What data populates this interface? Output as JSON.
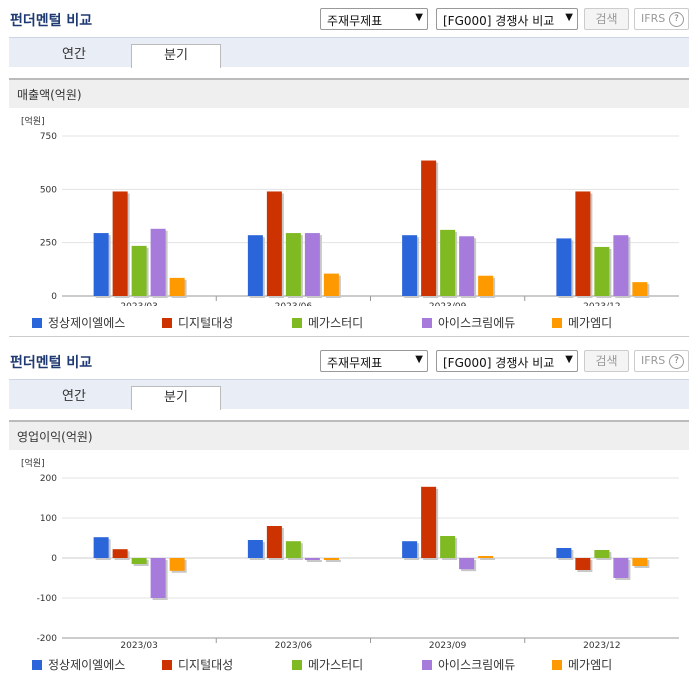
{
  "panels": [
    {
      "title": "펀더멘털 비교",
      "select_report": "주재무제표",
      "select_peer": "[FG000] 경쟁사 비교",
      "search_label": "검색",
      "ifrs_label": "IFRS",
      "help_glyph": "?",
      "tabs": [
        {
          "label": "연간"
        },
        {
          "label": "분기"
        }
      ],
      "active_tab": "분기",
      "chart_heading": "매출액(억원)"
    },
    {
      "title": "펀더멘털 비교",
      "select_report": "주재무제표",
      "select_peer": "[FG000] 경쟁사 비교",
      "search_label": "검색",
      "ifrs_label": "IFRS",
      "help_glyph": "?",
      "tabs": [
        {
          "label": "연간"
        },
        {
          "label": "분기"
        }
      ],
      "active_tab": "분기",
      "chart_heading": "영업이익(억원)"
    }
  ],
  "chart_data": [
    {
      "type": "bar",
      "title": "매출액(억원)",
      "unit_label": "[억원]",
      "categories": [
        "2023/03",
        "2023/06",
        "2023/09",
        "2023/12"
      ],
      "ylim": [
        0,
        750
      ],
      "yticks": [
        0,
        250,
        500,
        750
      ],
      "grid": true,
      "legend_position": "bottom",
      "series": [
        {
          "name": "정상제이엘에스",
          "color": "#2a66d9",
          "values": [
            295,
            285,
            285,
            270
          ]
        },
        {
          "name": "디지털대성",
          "color": "#cc3300",
          "values": [
            490,
            490,
            635,
            490
          ]
        },
        {
          "name": "메가스터디",
          "color": "#7fba22",
          "values": [
            235,
            295,
            310,
            230
          ]
        },
        {
          "name": "아이스크림에듀",
          "color": "#a77bdb",
          "values": [
            315,
            295,
            280,
            285
          ]
        },
        {
          "name": "메가엠디",
          "color": "#ff9900",
          "values": [
            85,
            105,
            95,
            65
          ]
        }
      ]
    },
    {
      "type": "bar",
      "title": "영업이익(억원)",
      "unit_label": "[억원]",
      "categories": [
        "2023/03",
        "2023/06",
        "2023/09",
        "2023/12"
      ],
      "ylim": [
        -200,
        200
      ],
      "yticks": [
        -200,
        -100,
        0,
        100,
        200
      ],
      "grid": true,
      "legend_position": "bottom",
      "series": [
        {
          "name": "정상제이엘에스",
          "color": "#2a66d9",
          "values": [
            52,
            45,
            42,
            25
          ]
        },
        {
          "name": "디지털대성",
          "color": "#cc3300",
          "values": [
            22,
            80,
            178,
            -30
          ]
        },
        {
          "name": "메가스터디",
          "color": "#7fba22",
          "values": [
            -15,
            42,
            55,
            20
          ]
        },
        {
          "name": "아이스크림에듀",
          "color": "#a77bdb",
          "values": [
            -100,
            -5,
            -28,
            -50
          ]
        },
        {
          "name": "메가엠디",
          "color": "#ff9900",
          "values": [
            -32,
            -5,
            5,
            -20
          ]
        }
      ]
    }
  ]
}
